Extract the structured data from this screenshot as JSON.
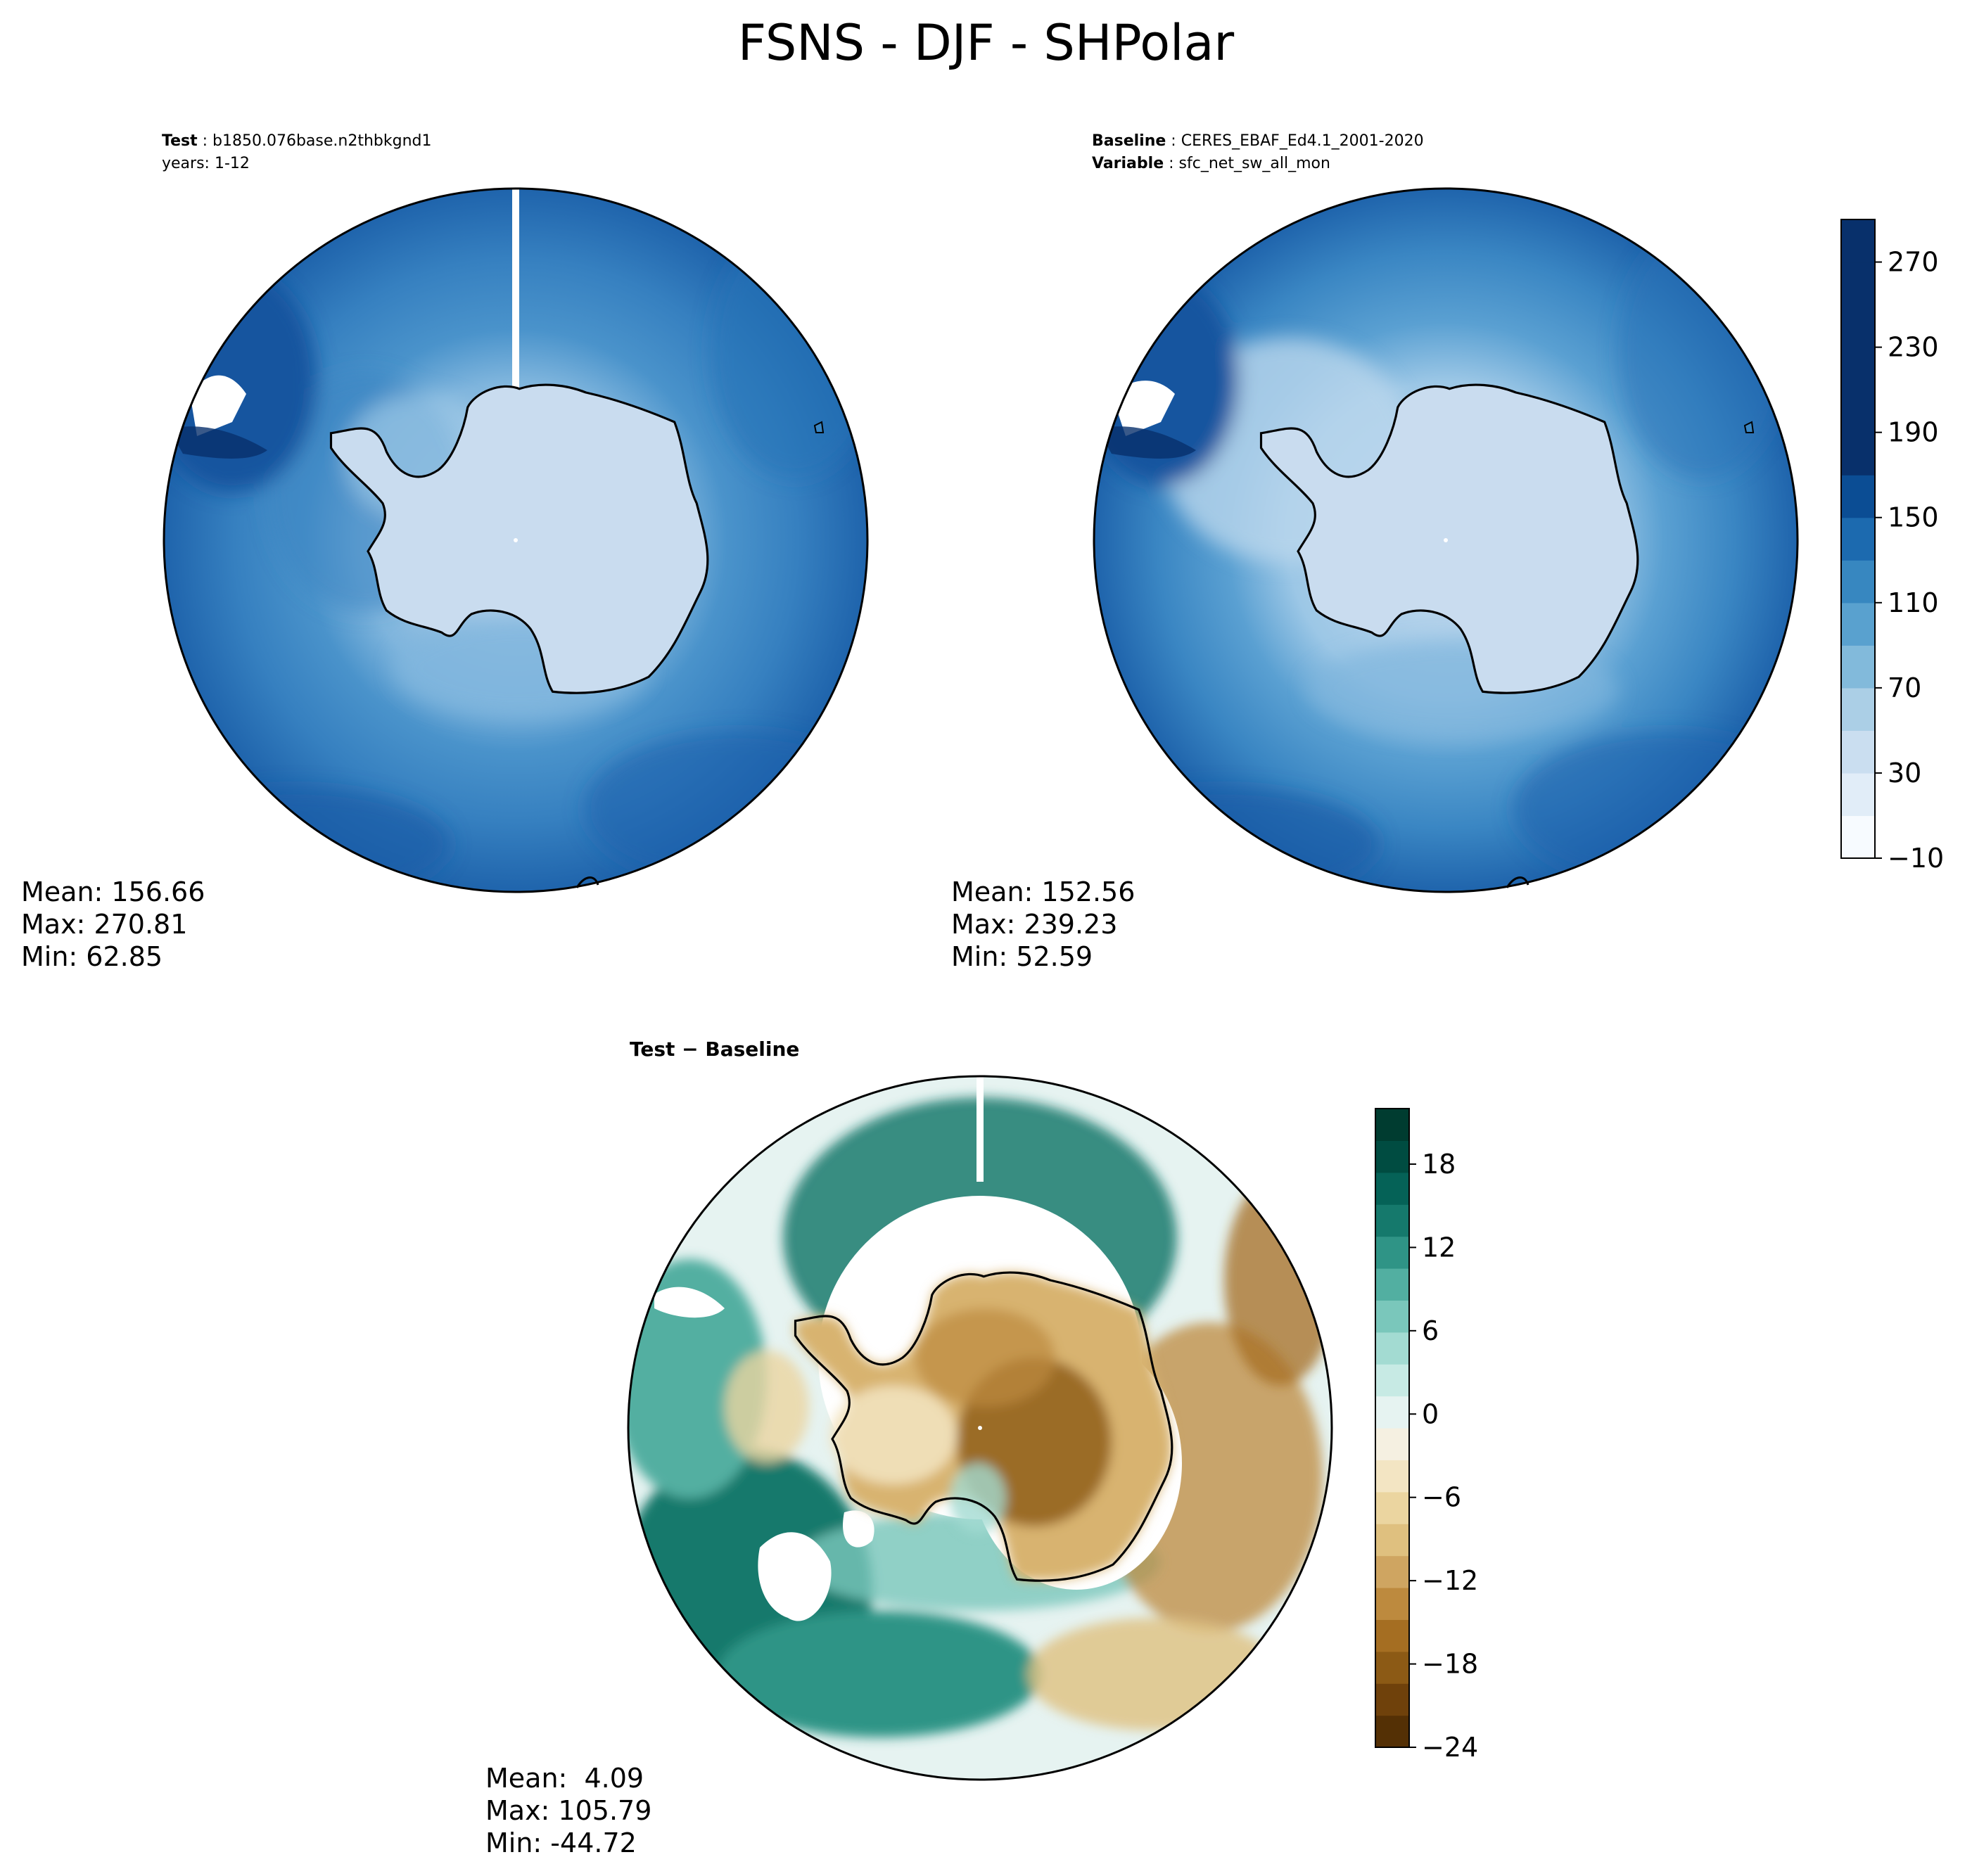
{
  "title": "FSNS - DJF - SHPolar",
  "test_panel": {
    "label_key": "Test",
    "label_value": "b1850.076base.n2thbkgnd1",
    "years_line": "years: 1-12",
    "stats": {
      "mean": "Mean: 156.66",
      "max": "Max: 270.81",
      "min": "Min: 62.85"
    }
  },
  "baseline_panel": {
    "label_key": "Baseline",
    "label_value": "CERES_EBAF_Ed4.1_2001-2020",
    "variable_key": "Variable",
    "variable_value": "sfc_net_sw_all_mon",
    "stats": {
      "mean": "Mean: 152.56",
      "max": "Max: 239.23",
      "min": "Min: 52.59"
    }
  },
  "diff_panel": {
    "label": "Test − Baseline",
    "stats": {
      "mean": "Mean:  4.09",
      "max": "Max: 105.79",
      "min": "Min: -44.72"
    }
  },
  "colors": {
    "ocean_dark": "#1b5ea6",
    "ocean_mid": "#3a82c0",
    "ocean_light": "#6aa8d6",
    "ice": "#c9dcef",
    "diff_teal_dark": "#0a5f54",
    "diff_teal": "#3fa193",
    "diff_light": "#e9f0ea",
    "diff_brown": "#b98437",
    "diff_brown_dark": "#7a4a12"
  },
  "chart_data": [
    {
      "type": "heatmap",
      "title": "Test",
      "projection": "south-polar-stereographic",
      "stats": {
        "mean": 156.66,
        "max": 270.81,
        "min": 62.85
      }
    },
    {
      "type": "heatmap",
      "title": "Baseline",
      "projection": "south-polar-stereographic",
      "stats": {
        "mean": 152.56,
        "max": 239.23,
        "min": 52.59
      },
      "colorbar": {
        "range": [
          -10,
          290
        ],
        "levels": [
          -10,
          10,
          30,
          50,
          70,
          90,
          110,
          130,
          150,
          170,
          190,
          210,
          230,
          250,
          270,
          290
        ],
        "ticks": [
          -10,
          30,
          70,
          110,
          150,
          190,
          230,
          270
        ],
        "tick_labels": [
          "−10",
          "30",
          "70",
          "110",
          "150",
          "190",
          "230",
          "270"
        ],
        "colors": [
          "#f7fbff",
          "#e1edf8",
          "#cadef0",
          "#abcfe6",
          "#82badb",
          "#59a1cf",
          "#3787c0",
          "#1c6aaf",
          "#0b4d94",
          "#08306b",
          "#08306b",
          "#08306b",
          "#08306b",
          "#08306b",
          "#08306b"
        ]
      }
    },
    {
      "type": "heatmap",
      "title": "Test − Baseline",
      "projection": "south-polar-stereographic",
      "stats": {
        "mean": 4.09,
        "max": 105.79,
        "min": -44.72
      },
      "colorbar": {
        "range": [
          -24,
          22
        ],
        "ticks": [
          -24,
          -18,
          -12,
          -6,
          0,
          6,
          12,
          18
        ],
        "tick_labels": [
          "−24",
          "−18",
          "−12",
          "−6",
          "0",
          "6",
          "12",
          "18"
        ],
        "colors": [
          "#543005",
          "#6f410b",
          "#8c5a15",
          "#a56e22",
          "#bd8a3e",
          "#cfa561",
          "#dfc07f",
          "#ebd5a0",
          "#f3e5c3",
          "#f5f0e1",
          "#e6f3f1",
          "#c7eae4",
          "#a3dbd2",
          "#7ac7bb",
          "#52afa1",
          "#2f9486",
          "#15796c",
          "#056257",
          "#004c41",
          "#003c30"
        ]
      }
    }
  ]
}
